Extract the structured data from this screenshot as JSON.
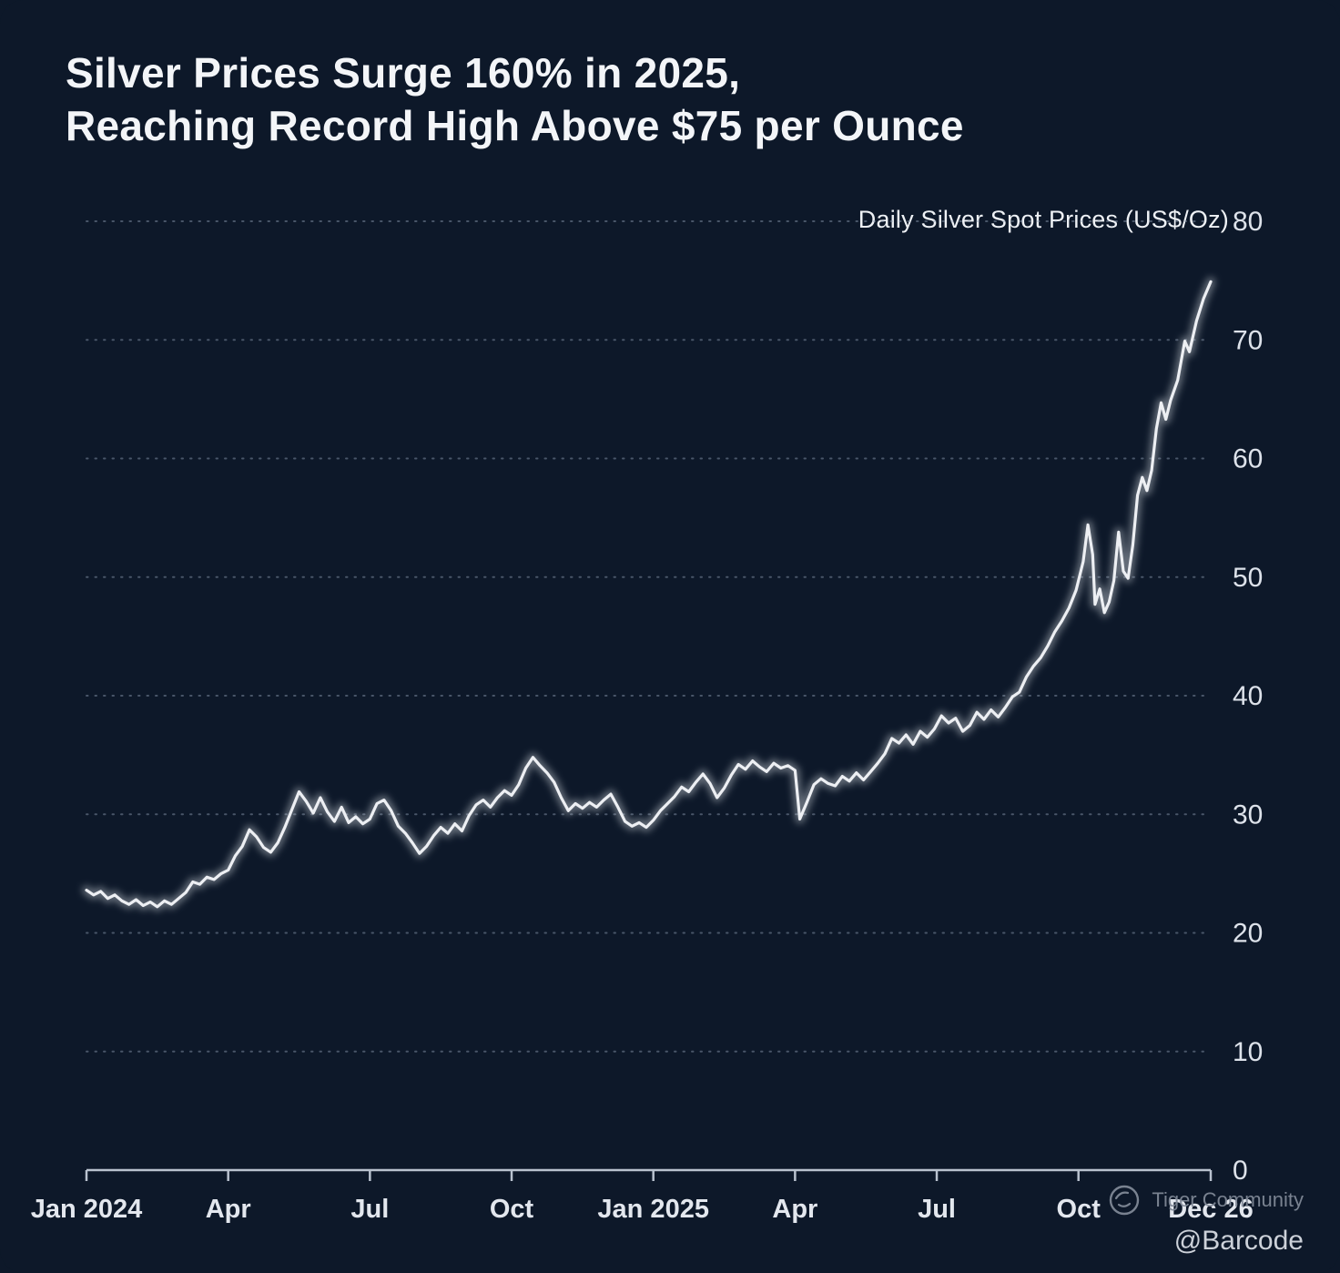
{
  "title": {
    "line1": "Silver Prices Surge 160% in 2025,",
    "line2": "Reaching Record High Above $75 per Ounce"
  },
  "legend_label": "Daily Silver Spot Prices (US$/Oz)",
  "footer": {
    "brand": "Tiger Community",
    "handle": "@Barcode",
    "logo_icon": "tiger-community-logo-icon"
  },
  "colors": {
    "background": "#0d1829",
    "line": "#edeff3",
    "grid": "#93a2b9",
    "axis": "#b9c2cf",
    "title_text": "#f3f5f8",
    "tick_label": "#dde2ea"
  },
  "chart_data": {
    "type": "line",
    "title": "Daily Silver Spot Prices (US$/Oz)",
    "xlabel": "",
    "ylabel": "US$/Oz",
    "ylim": [
      0,
      80
    ],
    "yticks": [
      0,
      10,
      20,
      30,
      40,
      50,
      60,
      70,
      80
    ],
    "xlim": [
      0,
      23.8
    ],
    "x_unit": "months since Jan 2024",
    "grid": "horizontal-dotted",
    "legend_position": "top-right",
    "xticks": [
      {
        "pos": 0,
        "label": "Jan 2024"
      },
      {
        "pos": 3,
        "label": "Apr"
      },
      {
        "pos": 6,
        "label": "Jul"
      },
      {
        "pos": 9,
        "label": "Oct"
      },
      {
        "pos": 12,
        "label": "Jan 2025"
      },
      {
        "pos": 15,
        "label": "Apr"
      },
      {
        "pos": 18,
        "label": "Jul"
      },
      {
        "pos": 21,
        "label": "Oct"
      },
      {
        "pos": 23.8,
        "label": "Dec 26"
      }
    ],
    "series": [
      {
        "name": "Daily Silver Spot Price (US$/Oz)",
        "points": [
          [
            0,
            23.6
          ],
          [
            0.15,
            23.2
          ],
          [
            0.3,
            23.5
          ],
          [
            0.45,
            22.9
          ],
          [
            0.6,
            23.2
          ],
          [
            0.75,
            22.7
          ],
          [
            0.9,
            22.4
          ],
          [
            1.05,
            22.8
          ],
          [
            1.2,
            22.3
          ],
          [
            1.35,
            22.6
          ],
          [
            1.5,
            22.2
          ],
          [
            1.65,
            22.7
          ],
          [
            1.8,
            22.4
          ],
          [
            1.95,
            22.9
          ],
          [
            2.1,
            23.4
          ],
          [
            2.25,
            24.3
          ],
          [
            2.4,
            24.1
          ],
          [
            2.55,
            24.7
          ],
          [
            2.7,
            24.5
          ],
          [
            2.85,
            25.0
          ],
          [
            3.0,
            25.3
          ],
          [
            3.15,
            26.5
          ],
          [
            3.3,
            27.3
          ],
          [
            3.45,
            28.7
          ],
          [
            3.6,
            28.1
          ],
          [
            3.75,
            27.2
          ],
          [
            3.9,
            26.8
          ],
          [
            4.05,
            27.6
          ],
          [
            4.2,
            28.9
          ],
          [
            4.35,
            30.4
          ],
          [
            4.5,
            31.9
          ],
          [
            4.65,
            31.1
          ],
          [
            4.8,
            30.1
          ],
          [
            4.95,
            31.4
          ],
          [
            5.1,
            30.2
          ],
          [
            5.25,
            29.4
          ],
          [
            5.4,
            30.6
          ],
          [
            5.55,
            29.3
          ],
          [
            5.7,
            29.8
          ],
          [
            5.85,
            29.2
          ],
          [
            6.0,
            29.6
          ],
          [
            6.15,
            30.9
          ],
          [
            6.3,
            31.2
          ],
          [
            6.45,
            30.3
          ],
          [
            6.6,
            29.0
          ],
          [
            6.75,
            28.4
          ],
          [
            6.9,
            27.6
          ],
          [
            7.05,
            26.7
          ],
          [
            7.2,
            27.3
          ],
          [
            7.35,
            28.2
          ],
          [
            7.5,
            28.9
          ],
          [
            7.65,
            28.4
          ],
          [
            7.8,
            29.2
          ],
          [
            7.95,
            28.6
          ],
          [
            8.1,
            29.9
          ],
          [
            8.25,
            30.8
          ],
          [
            8.4,
            31.2
          ],
          [
            8.55,
            30.6
          ],
          [
            8.7,
            31.4
          ],
          [
            8.85,
            32.0
          ],
          [
            9.0,
            31.6
          ],
          [
            9.15,
            32.5
          ],
          [
            9.3,
            33.9
          ],
          [
            9.45,
            34.8
          ],
          [
            9.6,
            34.1
          ],
          [
            9.75,
            33.5
          ],
          [
            9.9,
            32.7
          ],
          [
            10.05,
            31.4
          ],
          [
            10.2,
            30.3
          ],
          [
            10.35,
            30.9
          ],
          [
            10.5,
            30.5
          ],
          [
            10.65,
            31.0
          ],
          [
            10.8,
            30.6
          ],
          [
            10.95,
            31.2
          ],
          [
            11.1,
            31.7
          ],
          [
            11.25,
            30.6
          ],
          [
            11.4,
            29.4
          ],
          [
            11.55,
            29.0
          ],
          [
            11.7,
            29.3
          ],
          [
            11.85,
            28.9
          ],
          [
            12.0,
            29.5
          ],
          [
            12.15,
            30.3
          ],
          [
            12.3,
            30.9
          ],
          [
            12.45,
            31.5
          ],
          [
            12.6,
            32.3
          ],
          [
            12.75,
            31.9
          ],
          [
            12.9,
            32.7
          ],
          [
            13.05,
            33.4
          ],
          [
            13.2,
            32.6
          ],
          [
            13.35,
            31.4
          ],
          [
            13.5,
            32.2
          ],
          [
            13.65,
            33.3
          ],
          [
            13.8,
            34.2
          ],
          [
            13.95,
            33.8
          ],
          [
            14.1,
            34.5
          ],
          [
            14.25,
            34.0
          ],
          [
            14.4,
            33.6
          ],
          [
            14.55,
            34.3
          ],
          [
            14.7,
            33.9
          ],
          [
            14.85,
            34.1
          ],
          [
            15.0,
            33.7
          ],
          [
            15.1,
            29.6
          ],
          [
            15.25,
            31.0
          ],
          [
            15.4,
            32.5
          ],
          [
            15.55,
            33.0
          ],
          [
            15.7,
            32.6
          ],
          [
            15.85,
            32.4
          ],
          [
            16.0,
            33.2
          ],
          [
            16.15,
            32.8
          ],
          [
            16.3,
            33.5
          ],
          [
            16.45,
            32.9
          ],
          [
            16.6,
            33.6
          ],
          [
            16.75,
            34.3
          ],
          [
            16.9,
            35.1
          ],
          [
            17.05,
            36.4
          ],
          [
            17.2,
            36.0
          ],
          [
            17.35,
            36.7
          ],
          [
            17.5,
            35.9
          ],
          [
            17.65,
            37.0
          ],
          [
            17.8,
            36.5
          ],
          [
            17.95,
            37.2
          ],
          [
            18.1,
            38.3
          ],
          [
            18.25,
            37.7
          ],
          [
            18.4,
            38.1
          ],
          [
            18.55,
            37.0
          ],
          [
            18.7,
            37.5
          ],
          [
            18.85,
            38.6
          ],
          [
            19.0,
            38.0
          ],
          [
            19.15,
            38.8
          ],
          [
            19.3,
            38.2
          ],
          [
            19.45,
            39.0
          ],
          [
            19.6,
            39.9
          ],
          [
            19.75,
            40.3
          ],
          [
            19.9,
            41.6
          ],
          [
            20.05,
            42.5
          ],
          [
            20.2,
            43.2
          ],
          [
            20.35,
            44.2
          ],
          [
            20.5,
            45.4
          ],
          [
            20.65,
            46.3
          ],
          [
            20.8,
            47.4
          ],
          [
            20.95,
            48.9
          ],
          [
            21.1,
            51.3
          ],
          [
            21.2,
            54.4
          ],
          [
            21.3,
            51.9
          ],
          [
            21.35,
            47.7
          ],
          [
            21.45,
            49.0
          ],
          [
            21.55,
            47.0
          ],
          [
            21.65,
            47.9
          ],
          [
            21.75,
            49.7
          ],
          [
            21.85,
            53.8
          ],
          [
            21.95,
            50.5
          ],
          [
            22.05,
            49.9
          ],
          [
            22.15,
            52.7
          ],
          [
            22.25,
            56.9
          ],
          [
            22.35,
            58.4
          ],
          [
            22.45,
            57.3
          ],
          [
            22.55,
            59.0
          ],
          [
            22.65,
            62.5
          ],
          [
            22.75,
            64.7
          ],
          [
            22.85,
            63.3
          ],
          [
            22.95,
            64.9
          ],
          [
            23.1,
            66.6
          ],
          [
            23.25,
            69.9
          ],
          [
            23.35,
            69.0
          ],
          [
            23.5,
            71.6
          ],
          [
            23.65,
            73.5
          ],
          [
            23.8,
            74.9
          ]
        ]
      }
    ],
    "annotations": {
      "record_high": "Above $75 per ounce on Dec 26, 2025",
      "yoy_gain": "160% surge in 2025"
    }
  }
}
